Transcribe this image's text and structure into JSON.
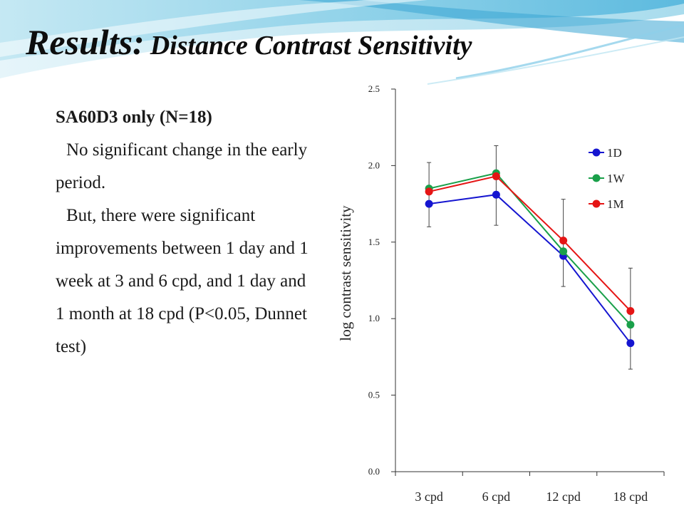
{
  "slide": {
    "title_main": "Results:",
    "title_sub": "Distance Contrast Sensitivity",
    "subheading": "SA60D3 only (N=18)",
    "paragraphs": [
      "No significant change in the early period.",
      "But, there were significant improvements between 1 day and 1 week at 3 and 6 cpd, and 1 day and 1 month at 18 cpd  (P<0.05, Dunnet test)"
    ]
  },
  "chart_data": {
    "type": "line",
    "title": "",
    "xlabel": "",
    "ylabel": "log contrast sensitivity",
    "categories": [
      "3 cpd",
      "6 cpd",
      "12 cpd",
      "18 cpd"
    ],
    "ylim": [
      0.0,
      2.5
    ],
    "yticks": [
      "0.0",
      "0.5",
      "1.0",
      "1.5",
      "2.0",
      "2.5"
    ],
    "grid": false,
    "legend_position": "top-right",
    "series": [
      {
        "name": "1D",
        "color": "#1515d0",
        "values": [
          1.75,
          1.81,
          1.41,
          0.84
        ]
      },
      {
        "name": "1W",
        "color": "#1aa04a",
        "values": [
          1.85,
          1.95,
          1.44,
          0.96
        ]
      },
      {
        "name": "1M",
        "color": "#e51515",
        "values": [
          1.83,
          1.93,
          1.51,
          1.05
        ]
      }
    ],
    "error_bars": {
      "lower": [
        1.6,
        1.61,
        1.21,
        0.67
      ],
      "upper": [
        2.02,
        2.13,
        1.78,
        1.33
      ]
    }
  }
}
